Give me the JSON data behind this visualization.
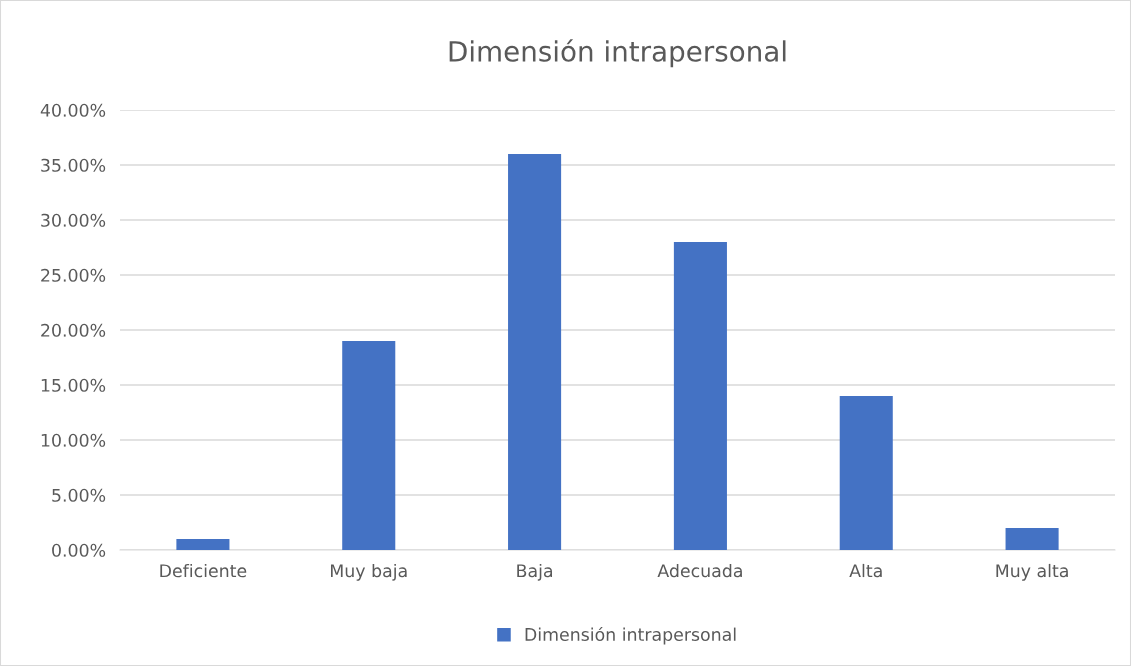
{
  "chart_data": {
    "type": "bar",
    "title": "Dimensión intrapersonal",
    "categories": [
      "Deficiente",
      "Muy baja",
      "Baja",
      "Adecuada",
      "Alta",
      "Muy alta"
    ],
    "series": [
      {
        "name": "Dimensión intrapersonal",
        "color": "#4472c4",
        "values": [
          1,
          19,
          36,
          28,
          14,
          2
        ]
      }
    ],
    "ylim": [
      0,
      40
    ],
    "yticks": [
      {
        "value": 0,
        "label": "0.00%"
      },
      {
        "value": 5,
        "label": "5.00%"
      },
      {
        "value": 10,
        "label": "10.00%"
      },
      {
        "value": 15,
        "label": "15.00%"
      },
      {
        "value": 20,
        "label": "20.00%"
      },
      {
        "value": 25,
        "label": "25.00%"
      },
      {
        "value": 30,
        "label": "30.00%"
      },
      {
        "value": 35,
        "label": "35.00%"
      },
      {
        "value": 40,
        "label": "40.00%"
      }
    ],
    "grid": "y",
    "legend": "bottom"
  }
}
